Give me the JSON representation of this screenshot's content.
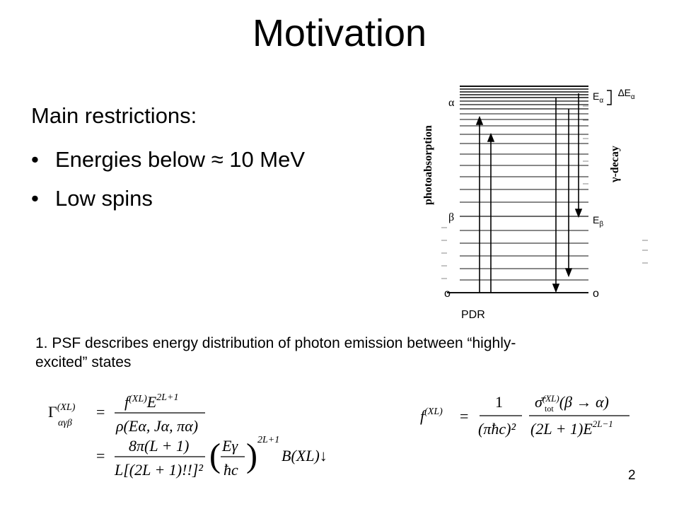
{
  "slide": {
    "title": "Motivation",
    "heading": "Main restrictions:",
    "bullets": [
      "Energies below ≈ 10 MeV",
      "Low spins"
    ],
    "note": "1. PSF describes energy distribution of photon emission between “highly-excited” states",
    "page_number": "2"
  },
  "diagram": {
    "label_photoabsorption": "photoabsorption",
    "label_gamma_decay": "γ-decay",
    "label_pdr": "PDR",
    "level_alpha": "α",
    "level_beta": "β",
    "level_ground_left": "o",
    "level_ground_right": "o",
    "label_E_alpha": "E",
    "label_E_alpha_sub": "α",
    "label_delta_E": "∆E",
    "label_delta_E_sub": "α",
    "label_E_beta": "E",
    "label_E_beta_sub": "β"
  },
  "formulas": {
    "gamma_lhs": "Γ",
    "gamma_sup": "(XL)",
    "gamma_sub": "αγβ",
    "eq": "=",
    "frac1_num_f": "f",
    "frac1_num_sup": "(XL)",
    "frac1_num_E": "E",
    "frac1_num_E_sup": "2L+1",
    "frac1_num_E_sub": "γ",
    "frac1_den": "ρ(Eα, Jα, πα)",
    "frac2_num": "8π(L + 1)",
    "frac2_den": "L[(2L + 1)!!]²",
    "paren_num": "Eγ",
    "paren_den": "ħc",
    "paren_sup": "2L+1",
    "bxl": "B(XL)↓",
    "f_lhs": "f",
    "f_sup": "(XL)",
    "f_frac1_num": "1",
    "f_frac1_den": "(πħc)²",
    "f_frac2_num_sigma": "σ̄",
    "f_frac2_num_sup": "(XL)",
    "f_frac2_num_sub": "tot",
    "f_frac2_num_rest": "(β → α)",
    "f_frac2_den": "(2L + 1)E",
    "f_frac2_den_sup": "2L−1",
    "f_frac2_den_sub": "γ"
  }
}
